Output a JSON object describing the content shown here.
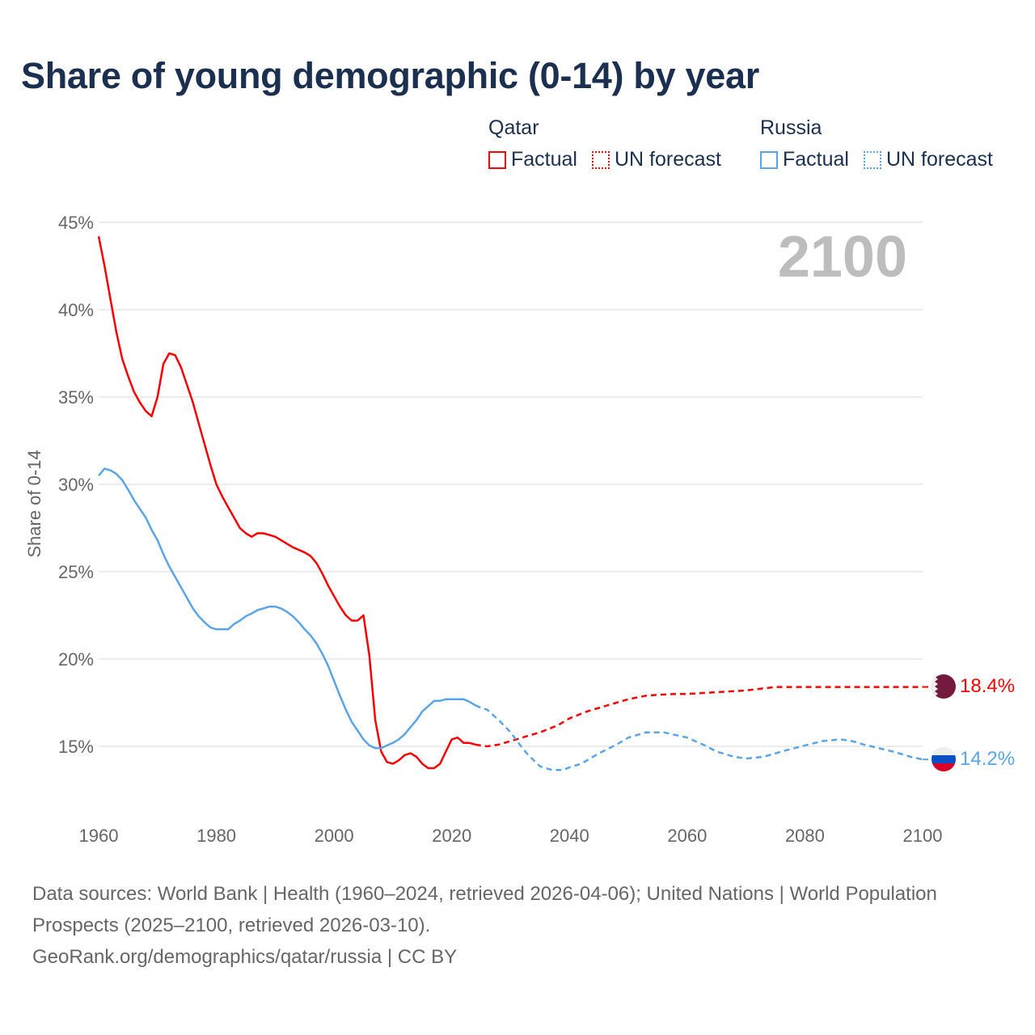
{
  "title": "Share of young demographic (0-14) by year",
  "legend": {
    "groups": [
      {
        "name": "Qatar",
        "factual": "Factual",
        "forecast": "UN forecast",
        "color": "#ff0000"
      },
      {
        "name": "Russia",
        "factual": "Factual",
        "forecast": "UN forecast",
        "color": "#5aa5e8"
      }
    ]
  },
  "year_watermark": "2100",
  "chart_data": {
    "type": "line",
    "title": "Share of young demographic (0-14) by year",
    "xlabel": "",
    "ylabel": "Share of 0-14",
    "xlim": [
      1960,
      2100
    ],
    "ylim": [
      12,
      45
    ],
    "xticks": [
      1960,
      1980,
      2000,
      2020,
      2040,
      2060,
      2080,
      2100
    ],
    "xtick_labels": [
      "1960",
      "1980",
      "2000",
      "2020",
      "2040",
      "2060",
      "2080",
      "2100"
    ],
    "yticks": [
      15,
      20,
      25,
      30,
      35,
      40,
      45
    ],
    "ytick_labels": [
      "15%",
      "20%",
      "25%",
      "30%",
      "35%",
      "40%",
      "45%"
    ],
    "grid": true,
    "legend_position": "top-right",
    "series": [
      {
        "name": "Qatar",
        "color": "#ff0000",
        "end_label": "18.4%",
        "factual": {
          "x": [
            1960,
            1961,
            1962,
            1963,
            1964,
            1965,
            1966,
            1967,
            1968,
            1969,
            1970,
            1971,
            1972,
            1973,
            1974,
            1975,
            1976,
            1977,
            1978,
            1979,
            1980,
            1981,
            1982,
            1983,
            1984,
            1985,
            1986,
            1987,
            1988,
            1989,
            1990,
            1991,
            1992,
            1993,
            1994,
            1995,
            1996,
            1997,
            1998,
            1999,
            2000,
            2001,
            2002,
            2003,
            2004,
            2005,
            2006,
            2007,
            2008,
            2009,
            2010,
            2011,
            2012,
            2013,
            2014,
            2015,
            2016,
            2017,
            2018,
            2019,
            2020,
            2021,
            2022,
            2023,
            2024
          ],
          "y": [
            44.2,
            42.5,
            40.6,
            38.75,
            37.2,
            36.2,
            35.3,
            34.7,
            34.2,
            33.9,
            35.0,
            36.9,
            37.5,
            37.4,
            36.7,
            35.7,
            34.7,
            33.5,
            32.3,
            31.1,
            30.0,
            29.3,
            28.7,
            28.1,
            27.5,
            27.2,
            27.0,
            27.2,
            27.2,
            27.1,
            27.0,
            26.8,
            26.6,
            26.4,
            26.25,
            26.1,
            25.9,
            25.5,
            24.9,
            24.2,
            23.6,
            23.0,
            22.5,
            22.2,
            22.2,
            22.5,
            20.2,
            16.5,
            14.7,
            14.1,
            14.0,
            14.2,
            14.5,
            14.6,
            14.4,
            14.0,
            13.75,
            13.75,
            14.0,
            14.7,
            15.4,
            15.5,
            15.2,
            15.2,
            15.1
          ]
        },
        "forecast": {
          "x": [
            2024,
            2026,
            2028,
            2030,
            2033,
            2035,
            2038,
            2040,
            2043,
            2045,
            2048,
            2050,
            2053,
            2055,
            2058,
            2060,
            2065,
            2070,
            2075,
            2080,
            2085,
            2090,
            2095,
            2100
          ],
          "y": [
            15.1,
            15.0,
            15.1,
            15.3,
            15.6,
            15.8,
            16.2,
            16.6,
            17.0,
            17.2,
            17.5,
            17.7,
            17.9,
            17.95,
            18.0,
            18.0,
            18.1,
            18.2,
            18.4,
            18.4,
            18.4,
            18.4,
            18.4,
            18.4
          ]
        }
      },
      {
        "name": "Russia",
        "color": "#5aa5e8",
        "end_label": "14.2%",
        "factual": {
          "x": [
            1960,
            1961,
            1962,
            1963,
            1964,
            1965,
            1966,
            1967,
            1968,
            1969,
            1970,
            1971,
            1972,
            1973,
            1974,
            1975,
            1976,
            1977,
            1978,
            1979,
            1980,
            1981,
            1982,
            1983,
            1984,
            1985,
            1986,
            1987,
            1988,
            1989,
            1990,
            1991,
            1992,
            1993,
            1994,
            1995,
            1996,
            1997,
            1998,
            1999,
            2000,
            2001,
            2002,
            2003,
            2004,
            2005,
            2006,
            2007,
            2008,
            2009,
            2010,
            2011,
            2012,
            2013,
            2014,
            2015,
            2016,
            2017,
            2018,
            2019,
            2020,
            2021,
            2022,
            2023,
            2024
          ],
          "y": [
            30.5,
            30.9,
            30.8,
            30.6,
            30.25,
            29.7,
            29.1,
            28.6,
            28.1,
            27.4,
            26.8,
            26.0,
            25.3,
            24.7,
            24.1,
            23.5,
            22.9,
            22.45,
            22.1,
            21.8,
            21.7,
            21.7,
            21.7,
            22.0,
            22.2,
            22.45,
            22.6,
            22.8,
            22.9,
            23.0,
            23.0,
            22.9,
            22.7,
            22.45,
            22.1,
            21.7,
            21.35,
            20.9,
            20.3,
            19.6,
            18.75,
            17.9,
            17.1,
            16.4,
            15.9,
            15.4,
            15.05,
            14.9,
            14.9,
            15.05,
            15.2,
            15.4,
            15.7,
            16.1,
            16.5,
            17.0,
            17.3,
            17.6,
            17.6,
            17.7,
            17.7,
            17.7,
            17.7,
            17.55,
            17.35
          ]
        },
        "forecast": {
          "x": [
            2024,
            2025,
            2026,
            2028,
            2030,
            2032,
            2033,
            2035,
            2037,
            2039,
            2040,
            2042,
            2045,
            2048,
            2050,
            2053,
            2056,
            2060,
            2063,
            2065,
            2068,
            2070,
            2073,
            2076,
            2080,
            2083,
            2086,
            2088,
            2090,
            2095,
            2098,
            2100
          ],
          "y": [
            17.35,
            17.2,
            17.1,
            16.5,
            15.8,
            14.9,
            14.5,
            13.85,
            13.65,
            13.65,
            13.8,
            14.0,
            14.6,
            15.1,
            15.5,
            15.8,
            15.8,
            15.5,
            15.05,
            14.7,
            14.4,
            14.3,
            14.4,
            14.7,
            15.05,
            15.3,
            15.4,
            15.3,
            15.1,
            14.7,
            14.4,
            14.25
          ]
        }
      }
    ]
  },
  "footer": {
    "sources": "Data sources: World Bank | Health (1960–2024, retrieved 2026-04-06); United Nations | World Population Prospects (2025–2100, retrieved 2026-03-10).",
    "credit": "GeoRank.org/demographics/qatar/russia | CC BY"
  }
}
